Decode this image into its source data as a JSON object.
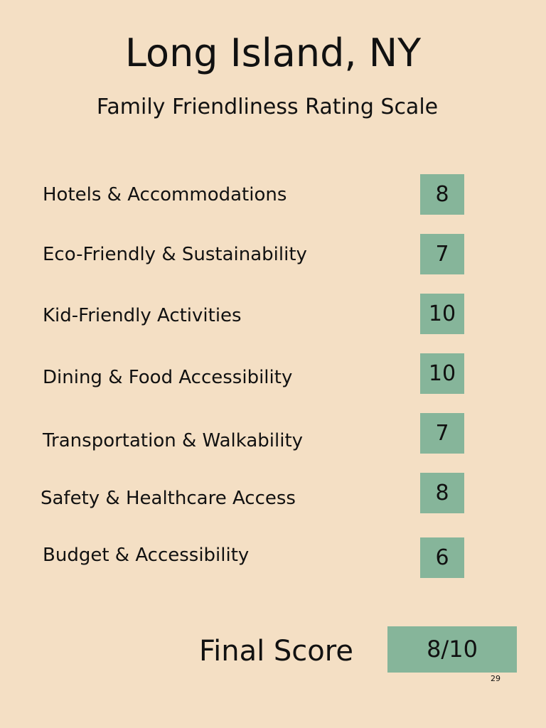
{
  "header": {
    "title": "Long Island, NY",
    "subtitle": "Family Friendliness Rating Scale"
  },
  "ratings": [
    {
      "label": "Hotels & Accommodations",
      "score": 8
    },
    {
      "label": "Eco-Friendly & Sustainability",
      "score": 7
    },
    {
      "label": "Kid-Friendly Activities",
      "score": 10
    },
    {
      "label": "Dining & Food Accessibility",
      "score": 10
    },
    {
      "label": "Transportation & Walkability",
      "score": 7
    },
    {
      "label": "Safety & Healthcare Access",
      "score": 8
    },
    {
      "label": "Budget & Accessibility",
      "score": 6
    }
  ],
  "final": {
    "label": "Final Score",
    "value": "8/10"
  },
  "page_number": "29"
}
